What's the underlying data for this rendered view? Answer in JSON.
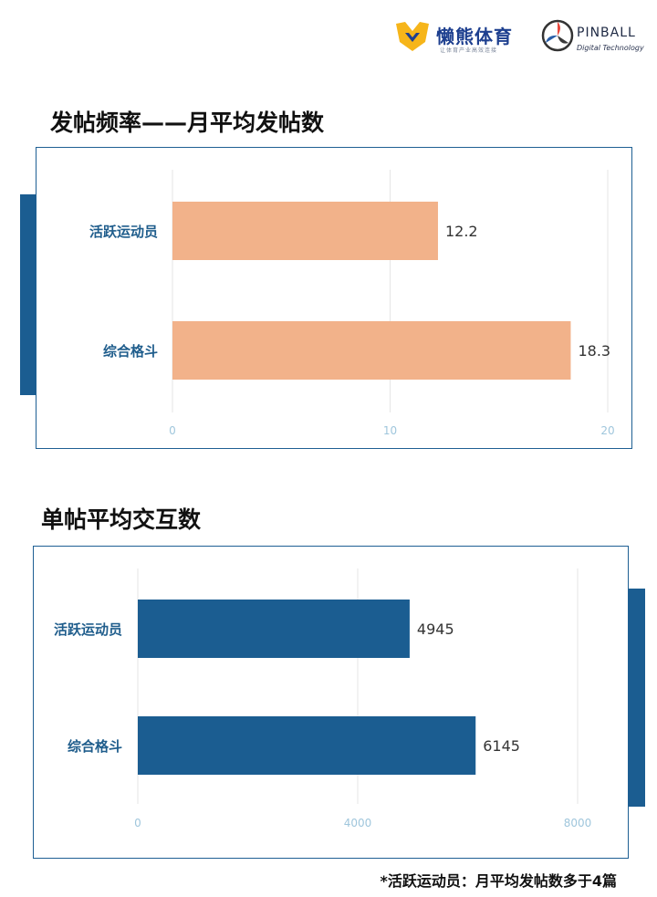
{
  "logos": {
    "lanxiong": {
      "name": "懒熊体育",
      "tagline": "让体育产业高效连接"
    },
    "pinball": {
      "name": "PINBALL",
      "subtitle": "Digital Technology"
    }
  },
  "sections": [
    {
      "title": "发帖频率——月平均发帖数"
    },
    {
      "title": "单帖平均交互数"
    }
  ],
  "footnote": "*活跃运动员：月平均发帖数多于4篇",
  "colors": {
    "chart1_bar": "#f2b28a",
    "chart2_bar": "#1b5d91",
    "frame": "#1e5f93",
    "category_label": "#1f5d8c",
    "tick": "#9fc6dc"
  },
  "chart_data": [
    {
      "type": "bar",
      "orientation": "horizontal",
      "title": "发帖频率——月平均发帖数",
      "categories": [
        "活跃运动员",
        "综合格斗"
      ],
      "values": [
        12.2,
        18.3
      ],
      "data_labels": [
        "12.2",
        "18.3"
      ],
      "xlim": [
        0,
        20
      ],
      "ticks": [
        "0",
        "10",
        "20"
      ],
      "grid": true
    },
    {
      "type": "bar",
      "orientation": "horizontal",
      "title": "单帖平均交互数",
      "categories": [
        "活跃运动员",
        "综合格斗"
      ],
      "values": [
        4945,
        6145
      ],
      "data_labels": [
        "4945",
        "6145"
      ],
      "xlim": [
        0,
        8000
      ],
      "ticks": [
        "0",
        "4000",
        "8000"
      ],
      "grid": true
    }
  ]
}
